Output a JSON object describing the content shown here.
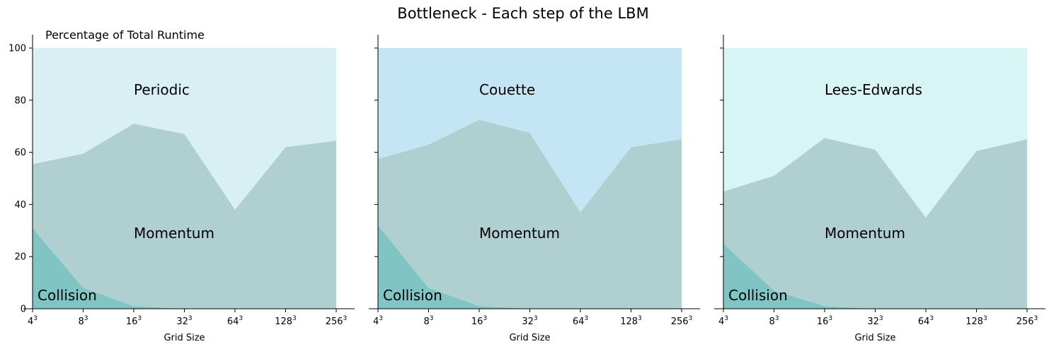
{
  "chart_data": {
    "type": "area",
    "title": "Bottleneck - Each step of the LBM",
    "ylabel": "Percentage of Total Runtime",
    "ylim": [
      0,
      100
    ],
    "yticks": [
      0,
      20,
      40,
      60,
      80,
      100
    ],
    "xlabel": "Grid Size",
    "categories": [
      {
        "base": "4",
        "exp": "3"
      },
      {
        "base": "8",
        "exp": "3"
      },
      {
        "base": "16",
        "exp": "3"
      },
      {
        "base": "32",
        "exp": "3"
      },
      {
        "base": "64",
        "exp": "3"
      },
      {
        "base": "128",
        "exp": "3"
      },
      {
        "base": "256",
        "exp": "3"
      }
    ],
    "panels": [
      {
        "colors": {
          "collision": "#80c4c4",
          "momentum": "#b0cfd1",
          "boundary": "#d8eff3"
        },
        "series": [
          {
            "name": "Collision",
            "values": [
              31,
              8,
              1,
              0,
              0,
              0,
              0
            ]
          },
          {
            "name": "Momentum",
            "values": [
              24.5,
              51.5,
              70,
              67,
              38,
              62,
              64.5
            ]
          },
          {
            "name": "Periodic",
            "values": [
              44.5,
              40.5,
              29,
              33,
              62,
              38,
              35.5
            ]
          }
        ]
      },
      {
        "colors": {
          "collision": "#80c4c4",
          "momentum": "#b0cfd1",
          "boundary": "#c4e6f4"
        },
        "series": [
          {
            "name": "Collision",
            "values": [
              32,
              8,
              1,
              0,
              0,
              0,
              0
            ]
          },
          {
            "name": "Momentum",
            "values": [
              25.5,
              55,
              71.5,
              67.5,
              37,
              62,
              65
            ]
          },
          {
            "name": "Couette",
            "values": [
              42.5,
              37,
              27.5,
              32.5,
              63,
              38,
              35
            ]
          }
        ]
      },
      {
        "colors": {
          "collision": "#80c4c4",
          "momentum": "#b0cfd1",
          "boundary": "#d6f5f4"
        },
        "series": [
          {
            "name": "Collision",
            "values": [
              25,
              7,
              1,
              0,
              0,
              0,
              0
            ]
          },
          {
            "name": "Momentum",
            "values": [
              20,
              44,
              64.5,
              61,
              35,
              60.5,
              65
            ]
          },
          {
            "name": "Lees-Edwards",
            "values": [
              55,
              49,
              34.5,
              39,
              65,
              39.5,
              35
            ]
          }
        ]
      }
    ]
  }
}
